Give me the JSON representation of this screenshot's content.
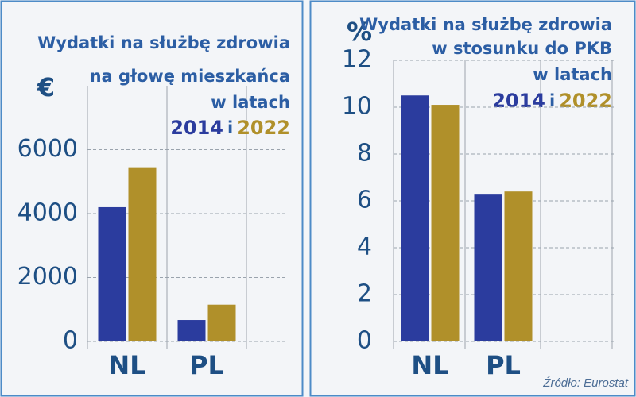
{
  "chart_data": [
    {
      "type": "bar",
      "title_lines": [
        "Wydatki na służbę zdrowia",
        "na głowę mieszkańca",
        "w latach"
      ],
      "unit": "€",
      "legend_joiner": "i",
      "categories": [
        "NL",
        "PL"
      ],
      "series": [
        {
          "name": "2014",
          "color": "#2b3c9e",
          "values": [
            4200,
            670
          ]
        },
        {
          "name": "2022",
          "color": "#b0902a",
          "values": [
            5450,
            1150
          ]
        }
      ],
      "ylim": [
        0,
        8000
      ],
      "yticks": [
        0,
        2000,
        4000,
        6000
      ],
      "grid": true
    },
    {
      "type": "bar",
      "title_lines": [
        "Wydatki na służbę zdrowia",
        "w stosunku do PKB",
        "w latach"
      ],
      "unit": "%",
      "legend_joiner": "i",
      "categories": [
        "NL",
        "PL"
      ],
      "series": [
        {
          "name": "2014",
          "color": "#2b3c9e",
          "values": [
            10.5,
            6.3
          ]
        },
        {
          "name": "2022",
          "color": "#b0902a",
          "values": [
            10.1,
            6.4
          ]
        }
      ],
      "ylim": [
        0,
        12
      ],
      "yticks": [
        0,
        2,
        4,
        6,
        8,
        10,
        12
      ],
      "grid": true
    }
  ],
  "source": "Źródło: Eurostat"
}
